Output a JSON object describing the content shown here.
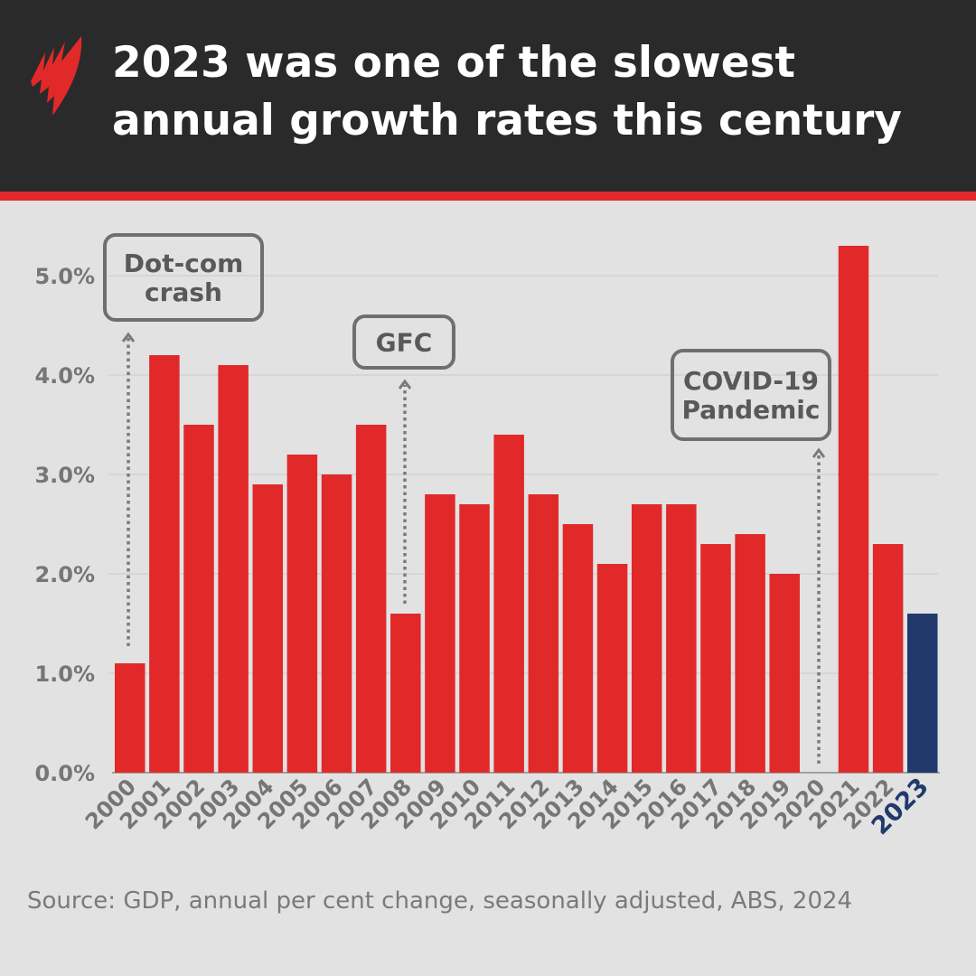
{
  "header": {
    "title": "2023 was one of the slowest annual growth rates this century",
    "logo": "SBS"
  },
  "source": "Source: GDP, annual per cent change, seasonally adjusted, ABS, 2024",
  "colors": {
    "bar": "#e1292a",
    "highlight": "#213a6b",
    "header": "#2a2a2a"
  },
  "chart_data": {
    "type": "bar",
    "categories": [
      "2000",
      "2001",
      "2002",
      "2003",
      "2004",
      "2005",
      "2006",
      "2007",
      "2008",
      "2009",
      "2010",
      "2011",
      "2012",
      "2013",
      "2014",
      "2015",
      "2016",
      "2017",
      "2018",
      "2019",
      "2020",
      "2021",
      "2022",
      "2023"
    ],
    "values": [
      1.1,
      4.2,
      3.5,
      4.1,
      2.9,
      3.2,
      3.0,
      3.5,
      1.6,
      2.8,
      2.7,
      3.4,
      2.8,
      2.5,
      2.1,
      2.7,
      2.7,
      2.3,
      2.4,
      2.0,
      0.0,
      5.3,
      2.3,
      1.6
    ],
    "highlight": "2023",
    "ylim": [
      0,
      5.3
    ],
    "yticks": [
      "0.0%",
      "1.0%",
      "2.0%",
      "3.0%",
      "4.0%",
      "5.0%"
    ],
    "grid": true,
    "annotations": [
      {
        "lines": [
          "Dot-com",
          "crash"
        ],
        "year": "2000"
      },
      {
        "lines": [
          "GFC"
        ],
        "year": "2008"
      },
      {
        "lines": [
          "COVID-19",
          "Pandemic"
        ],
        "year": "2020"
      }
    ]
  }
}
